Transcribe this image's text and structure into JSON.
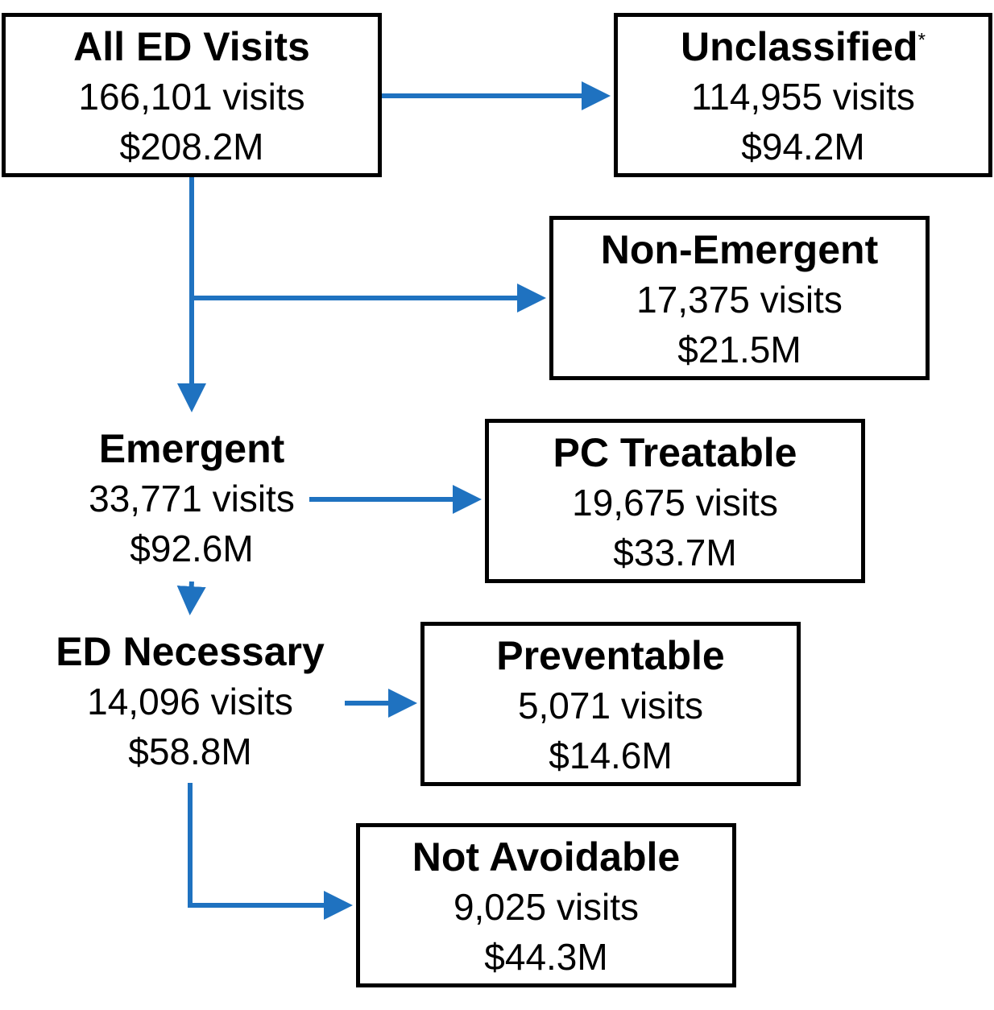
{
  "colors": {
    "connector": "#1f72c0",
    "box_border": "#000000"
  },
  "nodes": {
    "all_ed": {
      "title": "All ED Visits",
      "visits": "166,101 visits",
      "cost": "$208.2M"
    },
    "unclassified": {
      "title": "Unclassified",
      "footnote_mark": "*",
      "visits": "114,955 visits",
      "cost": "$94.2M"
    },
    "non_emergent": {
      "title": "Non-Emergent",
      "visits": "17,375 visits",
      "cost": "$21.5M"
    },
    "emergent": {
      "title": "Emergent",
      "visits": "33,771 visits",
      "cost": "$92.6M"
    },
    "pc_treatable": {
      "title": "PC Treatable",
      "visits": "19,675 visits",
      "cost": "$33.7M"
    },
    "ed_necessary": {
      "title": "ED Necessary",
      "visits": "14,096 visits",
      "cost": "$58.8M"
    },
    "preventable": {
      "title": "Preventable",
      "visits": "5,071 visits",
      "cost": "$14.6M"
    },
    "not_avoidable": {
      "title": "Not Avoidable",
      "visits": "9,025 visits",
      "cost": "$44.3M"
    }
  }
}
